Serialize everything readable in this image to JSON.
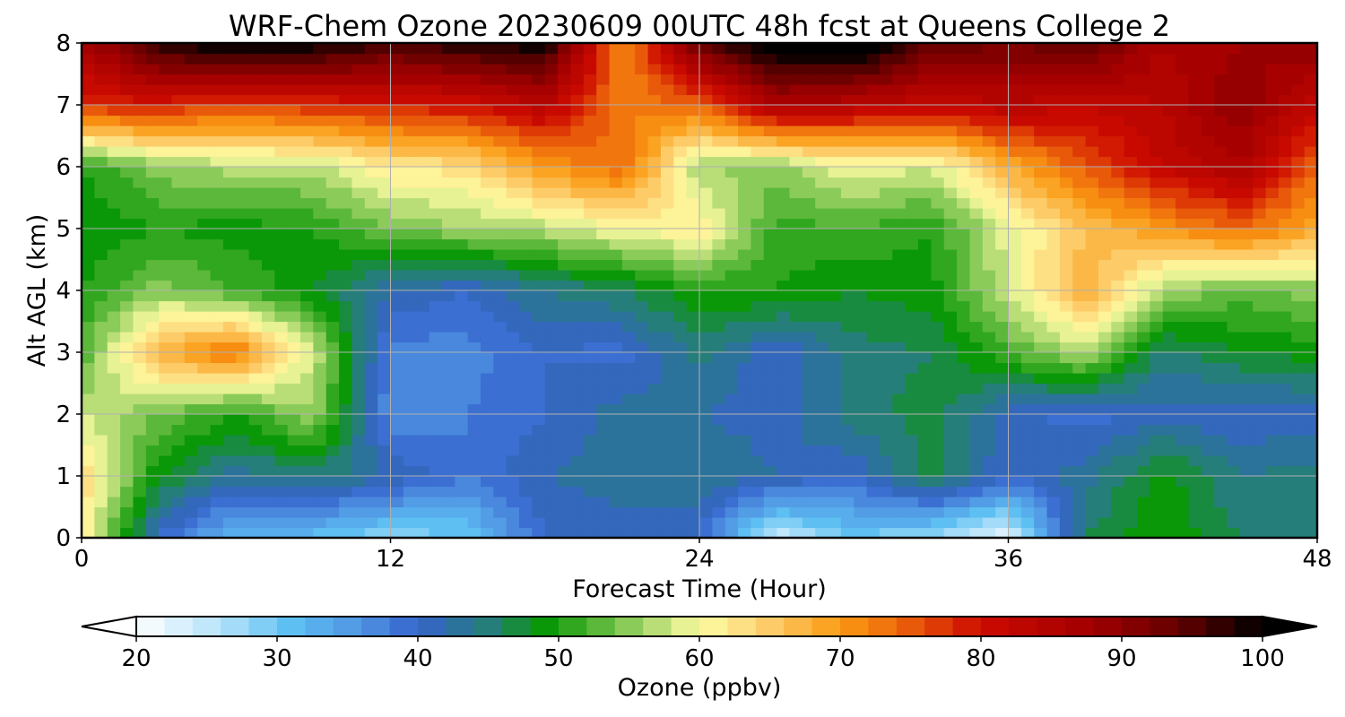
{
  "chart_data": {
    "type": "heatmap",
    "title": "WRF-Chem Ozone  20230609 00UTC 48h fcst at Queens College 2",
    "xlabel": "Forecast Time (Hour)",
    "ylabel": "Alt AGL (km)",
    "xlim": [
      0,
      48
    ],
    "ylim": [
      0,
      8
    ],
    "xticks": [
      0,
      12,
      24,
      36,
      48
    ],
    "yticks": [
      0,
      1,
      2,
      3,
      4,
      5,
      6,
      7,
      8
    ],
    "grid": true,
    "x": [
      0,
      3,
      6,
      9,
      12,
      15,
      18,
      21,
      24,
      27,
      30,
      33,
      36,
      39,
      42,
      45,
      48
    ],
    "y": [
      0,
      1,
      2,
      3,
      4,
      5,
      6,
      7,
      8
    ],
    "z": [
      [
        62,
        40,
        31,
        31,
        28,
        30,
        40,
        41,
        40,
        24,
        30,
        27,
        22,
        46,
        50,
        46,
        46
      ],
      [
        64,
        48,
        43,
        45,
        42,
        38,
        42,
        43,
        44,
        42,
        40,
        47,
        40,
        43,
        49,
        44,
        45
      ],
      [
        58,
        54,
        50,
        56,
        36,
        38,
        40,
        43,
        42,
        41,
        45,
        47,
        41,
        39,
        41,
        40,
        41
      ],
      [
        52,
        68,
        73,
        58,
        37,
        37,
        40,
        39,
        45,
        40,
        45,
        46,
        52,
        57,
        45,
        48,
        49
      ],
      [
        50,
        55,
        52,
        48,
        42,
        40,
        44,
        46,
        50,
        50,
        48,
        49,
        58,
        68,
        56,
        53,
        55
      ],
      [
        48,
        50,
        49,
        50,
        54,
        56,
        57,
        60,
        62,
        51,
        52,
        50,
        59,
        66,
        70,
        74,
        68
      ],
      [
        50,
        55,
        57,
        57,
        62,
        63,
        70,
        74,
        56,
        55,
        60,
        58,
        68,
        75,
        82,
        86,
        74
      ],
      [
        78,
        79,
        76,
        78,
        79,
        80,
        84,
        72,
        74,
        86,
        84,
        82,
        84,
        82,
        84,
        90,
        82
      ],
      [
        86,
        98,
        102,
        100,
        96,
        98,
        100,
        70,
        94,
        103,
        104,
        94,
        92,
        94,
        86,
        88,
        90
      ]
    ],
    "colorbar": {
      "label": "Ozone  (ppbv)",
      "min": 20,
      "max": 100,
      "step": 2,
      "ticks": [
        20,
        30,
        40,
        50,
        60,
        70,
        80,
        90,
        100
      ],
      "extend": "both",
      "colormap": [
        {
          "v": 20,
          "c": "#ffffff"
        },
        {
          "v": 26,
          "c": "#b4e2fa"
        },
        {
          "v": 31,
          "c": "#5ec0f2"
        },
        {
          "v": 36,
          "c": "#4f94e2"
        },
        {
          "v": 40,
          "c": "#3663cc"
        },
        {
          "v": 45,
          "c": "#267e7a"
        },
        {
          "v": 49,
          "c": "#0a9808"
        },
        {
          "v": 52,
          "c": "#45ae2a"
        },
        {
          "v": 56,
          "c": "#a2d46a"
        },
        {
          "v": 60,
          "c": "#fdfca2"
        },
        {
          "v": 64,
          "c": "#fed67a"
        },
        {
          "v": 70,
          "c": "#fa9a12"
        },
        {
          "v": 74,
          "c": "#ee6a0c"
        },
        {
          "v": 80,
          "c": "#cc0a00"
        },
        {
          "v": 88,
          "c": "#a00000"
        },
        {
          "v": 94,
          "c": "#650000"
        },
        {
          "v": 100,
          "c": "#000000"
        }
      ]
    }
  }
}
